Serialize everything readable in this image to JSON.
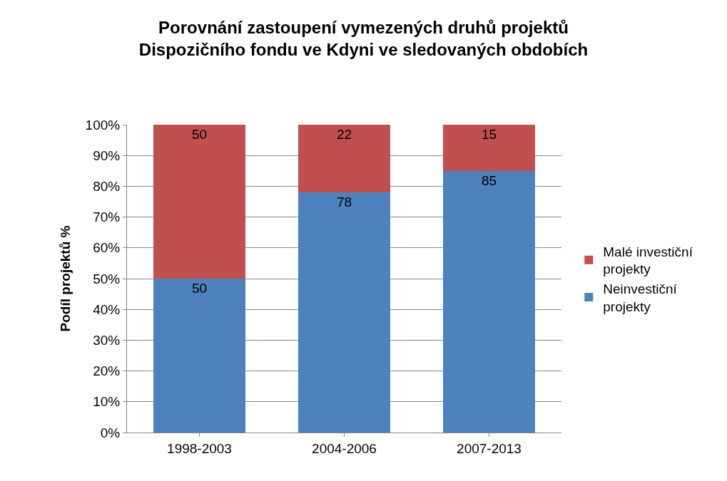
{
  "chart_data": {
    "type": "bar",
    "stacked": true,
    "title": "Porovnání zastoupení vymezených druhů projektů\nDispozičního fondu ve Kdyni ve sledovaných obdobích",
    "ylabel": "Podíl projektů %",
    "categories": [
      "1998-2003",
      "2004-2006",
      "2007-2013"
    ],
    "series": [
      {
        "name": "Neinvestiční projekty",
        "color": "#4f81bd",
        "values": [
          50,
          78,
          85
        ]
      },
      {
        "name": "Malé investiční projekty",
        "color": "#c0504d",
        "values": [
          50,
          22,
          15
        ]
      }
    ],
    "ylim": [
      0,
      100
    ],
    "yticks": [
      {
        "value": 0,
        "label": "0%"
      },
      {
        "value": 10,
        "label": "10%"
      },
      {
        "value": 20,
        "label": "20%"
      },
      {
        "value": 30,
        "label": "30%"
      },
      {
        "value": 40,
        "label": "40%"
      },
      {
        "value": 50,
        "label": "50%"
      },
      {
        "value": 60,
        "label": "60%"
      },
      {
        "value": 70,
        "label": "70%"
      },
      {
        "value": 80,
        "label": "80%"
      },
      {
        "value": 90,
        "label": "90%"
      },
      {
        "value": 100,
        "label": "100%"
      }
    ],
    "grid": "y",
    "legend": "right",
    "data_labels": true
  }
}
